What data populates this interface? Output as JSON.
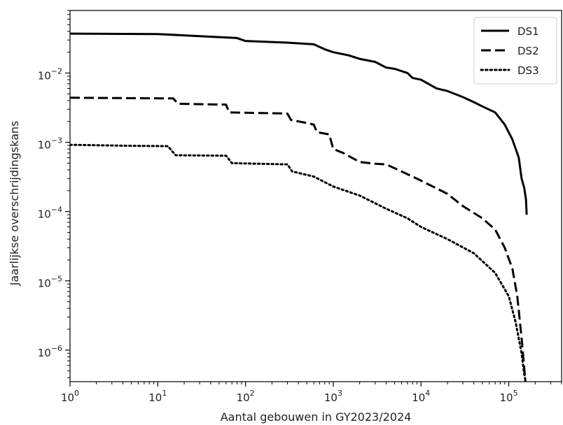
{
  "chart_data": {
    "type": "line",
    "title": "",
    "xlabel": "Aantal gebouwen in GY2023/2024",
    "ylabel": "Jaarlijkse overschrijdingskans",
    "x_scale": "log",
    "y_scale": "log",
    "xlim": [
      1,
      400000
    ],
    "ylim": [
      3.5e-07,
      0.08
    ],
    "x_ticks": [
      {
        "value": 1,
        "base": "10",
        "exp": "0"
      },
      {
        "value": 10,
        "base": "10",
        "exp": "1"
      },
      {
        "value": 100,
        "base": "10",
        "exp": "2"
      },
      {
        "value": 1000,
        "base": "10",
        "exp": "3"
      },
      {
        "value": 10000,
        "base": "10",
        "exp": "4"
      },
      {
        "value": 100000,
        "base": "10",
        "exp": "5"
      }
    ],
    "y_ticks": [
      {
        "value": 1e-06,
        "base": "10",
        "exp": "−6"
      },
      {
        "value": 1e-05,
        "base": "10",
        "exp": "−5"
      },
      {
        "value": 0.0001,
        "base": "10",
        "exp": "−4"
      },
      {
        "value": 0.001,
        "base": "10",
        "exp": "−3"
      },
      {
        "value": 0.01,
        "base": "10",
        "exp": "−2"
      }
    ],
    "grid": false,
    "legend_position": "top-right",
    "line_color": "#000000",
    "series": [
      {
        "name": "DS1",
        "style": "solid",
        "points": [
          [
            1,
            0.037
          ],
          [
            10,
            0.0365
          ],
          [
            20,
            0.035
          ],
          [
            50,
            0.033
          ],
          [
            80,
            0.032
          ],
          [
            100,
            0.029
          ],
          [
            200,
            0.028
          ],
          [
            300,
            0.0275
          ],
          [
            600,
            0.026
          ],
          [
            800,
            0.022
          ],
          [
            1000,
            0.02
          ],
          [
            1500,
            0.018
          ],
          [
            2000,
            0.016
          ],
          [
            3000,
            0.0145
          ],
          [
            4000,
            0.012
          ],
          [
            5000,
            0.0115
          ],
          [
            7000,
            0.01
          ],
          [
            8000,
            0.0085
          ],
          [
            10000,
            0.008
          ],
          [
            15000,
            0.006
          ],
          [
            20000,
            0.0055
          ],
          [
            30000,
            0.0045
          ],
          [
            40000,
            0.0038
          ],
          [
            50000,
            0.0033
          ],
          [
            70000,
            0.0027
          ],
          [
            90000,
            0.0018
          ],
          [
            110000,
            0.0011
          ],
          [
            130000,
            0.0006
          ],
          [
            140000,
            0.0003
          ],
          [
            150000,
            0.00022
          ],
          [
            157000,
            0.00015
          ],
          [
            160000,
            9e-05
          ]
        ]
      },
      {
        "name": "DS2",
        "style": "dashed",
        "points": [
          [
            1,
            0.0044
          ],
          [
            15,
            0.0043
          ],
          [
            17,
            0.0036
          ],
          [
            60,
            0.0035
          ],
          [
            65,
            0.0027
          ],
          [
            300,
            0.0026
          ],
          [
            330,
            0.0021
          ],
          [
            500,
            0.0019
          ],
          [
            600,
            0.0018
          ],
          [
            650,
            0.0014
          ],
          [
            900,
            0.0013
          ],
          [
            1000,
            0.0008
          ],
          [
            1300,
            0.0007
          ],
          [
            2000,
            0.00052
          ],
          [
            3000,
            0.00049
          ],
          [
            4000,
            0.00048
          ],
          [
            6000,
            0.00038
          ],
          [
            10000,
            0.00028
          ],
          [
            20000,
            0.00018
          ],
          [
            30000,
            0.00012
          ],
          [
            50000,
            8e-05
          ],
          [
            70000,
            5.5e-05
          ],
          [
            90000,
            3e-05
          ],
          [
            110000,
            1.5e-05
          ],
          [
            125000,
            6e-06
          ],
          [
            140000,
            1.5e-06
          ],
          [
            150000,
            5.5e-07
          ],
          [
            155000,
            3.5e-07
          ]
        ]
      },
      {
        "name": "DS3",
        "style": "dotted",
        "points": [
          [
            1,
            0.00092
          ],
          [
            5,
            0.00089
          ],
          [
            13,
            0.00088
          ],
          [
            16,
            0.00065
          ],
          [
            60,
            0.00064
          ],
          [
            70,
            0.0005
          ],
          [
            300,
            0.00048
          ],
          [
            340,
            0.00038
          ],
          [
            600,
            0.00032
          ],
          [
            1000,
            0.00023
          ],
          [
            2000,
            0.00017
          ],
          [
            4000,
            0.00011
          ],
          [
            7000,
            8e-05
          ],
          [
            10000,
            6e-05
          ],
          [
            20000,
            4e-05
          ],
          [
            40000,
            2.5e-05
          ],
          [
            70000,
            1.3e-05
          ],
          [
            100000,
            6e-06
          ],
          [
            120000,
            2.5e-06
          ],
          [
            140000,
            9e-07
          ],
          [
            150000,
            4.5e-07
          ],
          [
            156000,
            3.5e-07
          ]
        ]
      }
    ]
  }
}
